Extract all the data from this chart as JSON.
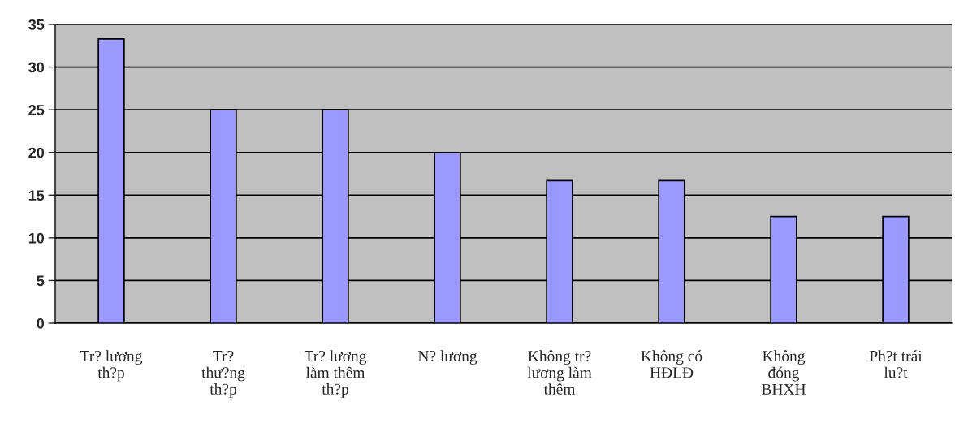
{
  "chart_data": {
    "type": "bar",
    "categories": [
      "Tr? lương\nth?p",
      "Tr?\nthư?ng\nth?p",
      "Tr? lương\nlàm thêm\nth?p",
      "N? lương",
      "Không tr?\nlương làm\nthêm",
      "Không có\nHĐLĐ",
      "Không\nđóng\nBHXH",
      "Ph?t trái\nlu?t"
    ],
    "values": [
      33.3,
      25,
      25,
      20,
      16.7,
      16.7,
      12.5,
      12.5
    ],
    "color": "#9999ff",
    "ylim": [
      0,
      35
    ],
    "yticks": [
      0,
      5,
      10,
      15,
      20,
      25,
      30,
      35
    ],
    "grid": "y"
  }
}
